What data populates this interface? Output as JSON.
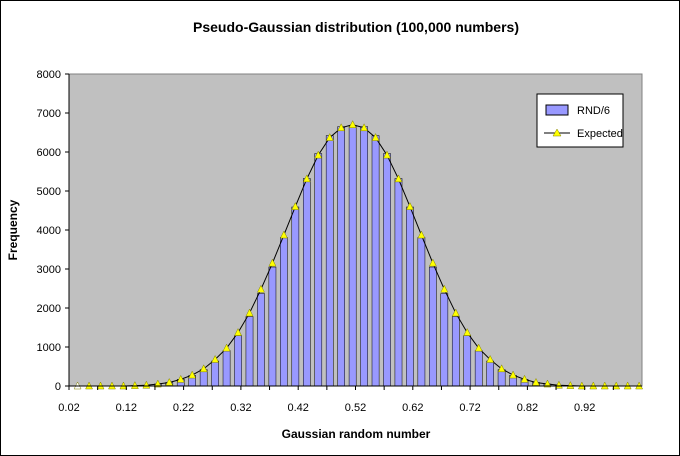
{
  "chart_data": {
    "type": "bar",
    "title": "Pseudo-Gaussian distribution (100,000 numbers)",
    "xlabel": "Gaussian random number",
    "ylabel": "Frequency",
    "x_tick_labels": [
      "0.02",
      "0.12",
      "0.22",
      "0.32",
      "0.42",
      "0.52",
      "0.62",
      "0.72",
      "0.82",
      "0.92"
    ],
    "y_tick_labels": [
      "0",
      "1000",
      "2000",
      "3000",
      "4000",
      "5000",
      "6000",
      "7000",
      "8000"
    ],
    "ylim": [
      0,
      8000
    ],
    "xlim": [
      0.02,
      1.02
    ],
    "grid": false,
    "plot_background": "#c0c0c0",
    "legend_position": "top-right",
    "x": [
      0.035,
      0.055,
      0.075,
      0.095,
      0.115,
      0.135,
      0.155,
      0.175,
      0.195,
      0.215,
      0.235,
      0.255,
      0.275,
      0.295,
      0.315,
      0.335,
      0.355,
      0.375,
      0.395,
      0.415,
      0.435,
      0.455,
      0.475,
      0.495,
      0.515,
      0.535,
      0.555,
      0.575,
      0.595,
      0.615,
      0.635,
      0.655,
      0.675,
      0.695,
      0.715,
      0.735,
      0.755,
      0.775,
      0.795,
      0.815,
      0.835,
      0.855,
      0.875,
      0.895,
      0.915,
      0.935,
      0.955,
      0.975,
      0.995,
      1.015
    ],
    "series": [
      {
        "name": "RND/6",
        "kind": "bar",
        "color": "#9999ff",
        "values": [
          0,
          0,
          0,
          0,
          0,
          10,
          20,
          50,
          90,
          170,
          270,
          420,
          640,
          910,
          1290,
          1780,
          2370,
          3050,
          3810,
          4590,
          5320,
          5960,
          6420,
          6650,
          6670,
          6650,
          6420,
          5960,
          5320,
          4590,
          3810,
          3050,
          2370,
          1780,
          1290,
          910,
          640,
          420,
          270,
          170,
          90,
          50,
          20,
          10,
          0,
          0,
          0,
          0,
          0,
          0
        ]
      },
      {
        "name": "Expected",
        "kind": "line",
        "color": "#000000",
        "marker_color": "#ffff00",
        "values": [
          0,
          0,
          0,
          0,
          0,
          10,
          20,
          50,
          90,
          170,
          280,
          440,
          680,
          970,
          1370,
          1870,
          2480,
          3150,
          3870,
          4600,
          5310,
          5920,
          6370,
          6620,
          6700,
          6620,
          6370,
          5920,
          5310,
          4600,
          3870,
          3150,
          2480,
          1870,
          1370,
          970,
          680,
          440,
          280,
          170,
          90,
          50,
          20,
          10,
          0,
          0,
          0,
          0,
          0,
          0
        ]
      }
    ]
  }
}
